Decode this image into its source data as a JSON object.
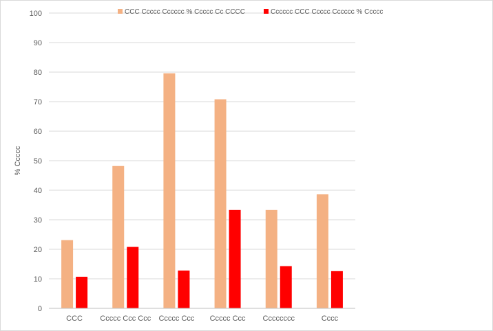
{
  "chart_data": {
    "type": "bar",
    "title": "",
    "xlabel": "",
    "ylabel": "% Ccccc",
    "ylim": [
      0,
      100
    ],
    "yticks": [
      0,
      10,
      20,
      30,
      40,
      50,
      60,
      70,
      80,
      90,
      100
    ],
    "grid": true,
    "legend_position": "top",
    "categories": [
      "CCC",
      "Ccccc Ccc Ccc",
      "Ccccc Ccc",
      "Ccccc Ccc",
      "Cccccccc",
      "Cccc"
    ],
    "series": [
      {
        "name": "CCC Ccccc Cccccc % Ccccc Cc CCCC",
        "color": "#f4b183",
        "values": [
          23.1,
          48.2,
          79.6,
          70.8,
          33.3,
          38.6
        ]
      },
      {
        "name": "Cccccc CCC Ccccc Cccccc % Ccccc",
        "color": "#ff0000",
        "values": [
          10.7,
          20.8,
          12.8,
          33.3,
          14.3,
          12.6
        ]
      }
    ]
  }
}
